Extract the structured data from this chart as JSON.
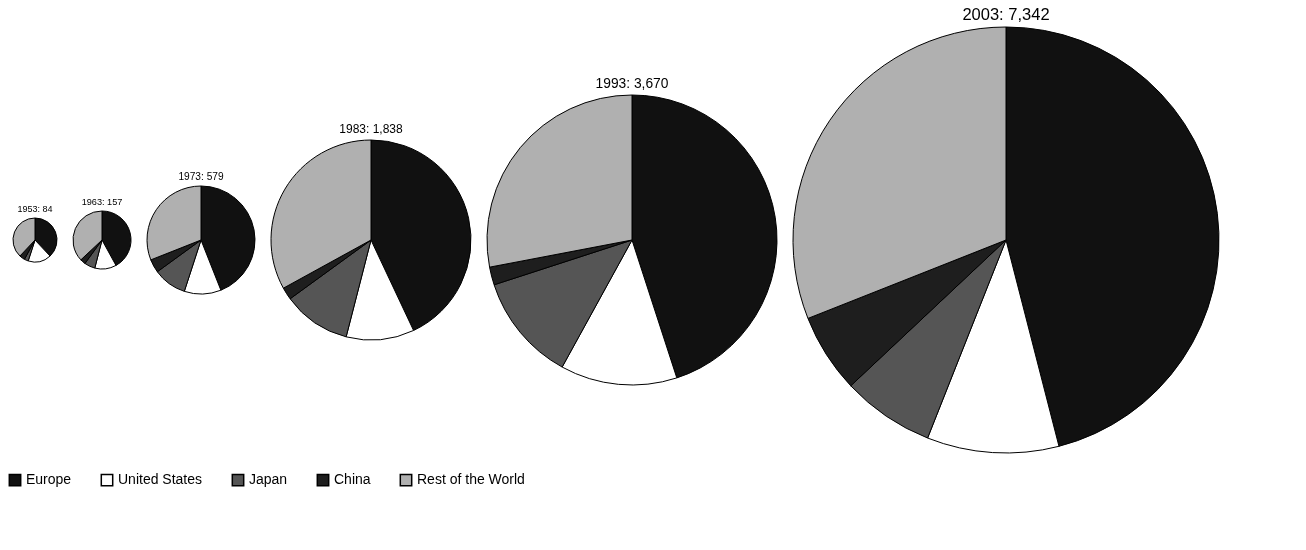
{
  "chart_data": {
    "type": "pie",
    "categories": [
      "Europe",
      "United States",
      "Japan",
      "China",
      "Rest of the World"
    ],
    "colors": [
      "#111111",
      "#ffffff",
      "#555555",
      "#1e1e1e",
      "#b0b0b0"
    ],
    "legend": "bottom",
    "series": [
      {
        "name": "1953: 84",
        "values": [
          38,
          17,
          3,
          4,
          38
        ]
      },
      {
        "name": "1963: 157",
        "values": [
          42,
          12,
          6,
          3,
          37
        ]
      },
      {
        "name": "1973: 579",
        "values": [
          44,
          11,
          10,
          4,
          31
        ]
      },
      {
        "name": "1983: 1,838",
        "values": [
          43,
          11,
          11,
          2,
          33
        ]
      },
      {
        "name": "1993: 3,670",
        "values": [
          45,
          13,
          12,
          2,
          28
        ]
      },
      {
        "name": "2003: 7,342",
        "values": [
          46,
          10,
          7,
          6,
          31
        ]
      }
    ]
  }
}
